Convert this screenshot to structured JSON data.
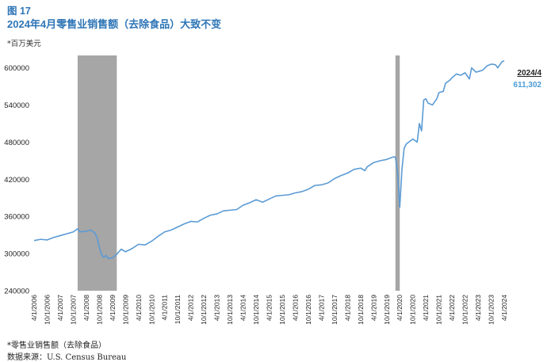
{
  "figure": {
    "title": "图 17",
    "subtitle": "2024年4月零售业销售额（去除食品）大致不变",
    "unit": "*百万美元",
    "footnote": "*零售业销售额（去除食品）",
    "source": "数据来源：U.S. Census Bureau"
  },
  "colors": {
    "line": "#5b9bd5",
    "recession": "#a6a6a6",
    "title": "#2e75b6",
    "callout_value": "#4a9bd6"
  },
  "chart_data": {
    "type": "line",
    "title": "2024年4月零售业销售额（去除食品）大致不变",
    "xlabel": "",
    "ylabel": "*百万美元",
    "ylim": [
      240000,
      620000
    ],
    "yticks": [
      240000,
      300000,
      360000,
      420000,
      480000,
      540000,
      600000
    ],
    "xticks": [
      "4/1/2006",
      "10/1/2006",
      "4/1/2007",
      "10/1/2007",
      "4/1/2008",
      "10/1/2008",
      "4/1/2009",
      "10/1/2009",
      "4/1/2010",
      "10/1/2010",
      "4/1/2011",
      "10/1/2011",
      "4/1/2012",
      "10/1/2012",
      "4/1/2013",
      "10/1/2013",
      "4/1/2014",
      "10/1/2014",
      "4/1/2015",
      "10/1/2015",
      "4/1/2016",
      "10/1/2016",
      "4/1/2017",
      "10/1/2017",
      "4/1/2018",
      "10/1/2018",
      "4/1/2019",
      "10/1/2019",
      "4/1/2020",
      "10/1/2020",
      "4/1/2021",
      "10/1/2021",
      "4/1/2022",
      "10/1/2022",
      "4/1/2023",
      "10/1/2023",
      "4/1/2024"
    ],
    "shaded_periods": [
      {
        "start": "12/1/2007",
        "end": "6/1/2009"
      },
      {
        "start": "2/1/2020",
        "end": "4/1/2020"
      }
    ],
    "callout": {
      "date": "2024/4",
      "value": "611,302"
    },
    "series": [
      {
        "points": [
          [
            "4/1/2006",
            321000
          ],
          [
            "7/1/2006",
            323000
          ],
          [
            "10/1/2006",
            322000
          ],
          [
            "1/1/2007",
            326000
          ],
          [
            "4/1/2007",
            329000
          ],
          [
            "7/1/2007",
            332000
          ],
          [
            "10/1/2007",
            335000
          ],
          [
            "12/1/2007",
            340000
          ],
          [
            "1/1/2008",
            335000
          ],
          [
            "4/1/2008",
            336000
          ],
          [
            "6/1/2008",
            338000
          ],
          [
            "8/1/2008",
            333000
          ],
          [
            "9/1/2008",
            325000
          ],
          [
            "10/1/2008",
            310000
          ],
          [
            "11/1/2008",
            298000
          ],
          [
            "12/1/2008",
            294000
          ],
          [
            "1/1/2009",
            297000
          ],
          [
            "2/1/2009",
            292000
          ],
          [
            "4/1/2009",
            293000
          ],
          [
            "6/1/2009",
            299000
          ],
          [
            "8/1/2009",
            307000
          ],
          [
            "10/1/2009",
            303000
          ],
          [
            "1/1/2010",
            308000
          ],
          [
            "4/1/2010",
            315000
          ],
          [
            "7/1/2010",
            314000
          ],
          [
            "10/1/2010",
            320000
          ],
          [
            "1/1/2011",
            328000
          ],
          [
            "4/1/2011",
            335000
          ],
          [
            "7/1/2011",
            338000
          ],
          [
            "10/1/2011",
            343000
          ],
          [
            "1/1/2012",
            348000
          ],
          [
            "4/1/2012",
            352000
          ],
          [
            "7/1/2012",
            351000
          ],
          [
            "10/1/2012",
            357000
          ],
          [
            "1/1/2013",
            362000
          ],
          [
            "4/1/2013",
            364000
          ],
          [
            "7/1/2013",
            369000
          ],
          [
            "10/1/2013",
            370000
          ],
          [
            "1/1/2014",
            371000
          ],
          [
            "4/1/2014",
            378000
          ],
          [
            "7/1/2014",
            382000
          ],
          [
            "10/1/2014",
            387000
          ],
          [
            "1/1/2015",
            383000
          ],
          [
            "4/1/2015",
            388000
          ],
          [
            "7/1/2015",
            393000
          ],
          [
            "10/1/2015",
            394000
          ],
          [
            "1/1/2016",
            395000
          ],
          [
            "4/1/2016",
            398000
          ],
          [
            "7/1/2016",
            400000
          ],
          [
            "10/1/2016",
            404000
          ],
          [
            "1/1/2017",
            410000
          ],
          [
            "4/1/2017",
            411000
          ],
          [
            "7/1/2017",
            414000
          ],
          [
            "10/1/2017",
            421000
          ],
          [
            "1/1/2018",
            426000
          ],
          [
            "4/1/2018",
            430000
          ],
          [
            "7/1/2018",
            436000
          ],
          [
            "10/1/2018",
            438000
          ],
          [
            "12/1/2018",
            434000
          ],
          [
            "1/1/2019",
            440000
          ],
          [
            "4/1/2019",
            447000
          ],
          [
            "7/1/2019",
            450000
          ],
          [
            "10/1/2019",
            452000
          ],
          [
            "1/1/2020",
            456000
          ],
          [
            "2/1/2020",
            456000
          ],
          [
            "3/1/2020",
            430000
          ],
          [
            "4/1/2020",
            375000
          ],
          [
            "5/1/2020",
            436000
          ],
          [
            "6/1/2020",
            470000
          ],
          [
            "7/1/2020",
            477000
          ],
          [
            "10/1/2020",
            485000
          ],
          [
            "12/1/2020",
            480000
          ],
          [
            "1/1/2021",
            510000
          ],
          [
            "2/1/2021",
            498000
          ],
          [
            "3/1/2021",
            548000
          ],
          [
            "4/1/2021",
            550000
          ],
          [
            "5/1/2021",
            543000
          ],
          [
            "7/1/2021",
            540000
          ],
          [
            "9/1/2021",
            550000
          ],
          [
            "10/1/2021",
            560000
          ],
          [
            "12/1/2021",
            562000
          ],
          [
            "1/1/2022",
            575000
          ],
          [
            "3/1/2022",
            580000
          ],
          [
            "4/1/2022",
            584000
          ],
          [
            "6/1/2022",
            590000
          ],
          [
            "8/1/2022",
            588000
          ],
          [
            "10/1/2022",
            592000
          ],
          [
            "12/1/2022",
            582000
          ],
          [
            "1/1/2023",
            600000
          ],
          [
            "3/1/2023",
            593000
          ],
          [
            "4/1/2023",
            594000
          ],
          [
            "6/1/2023",
            596000
          ],
          [
            "8/1/2023",
            603000
          ],
          [
            "10/1/2023",
            606000
          ],
          [
            "12/1/2023",
            605000
          ],
          [
            "1/1/2024",
            600000
          ],
          [
            "3/1/2024",
            610000
          ],
          [
            "4/1/2024",
            611302
          ]
        ]
      }
    ]
  }
}
